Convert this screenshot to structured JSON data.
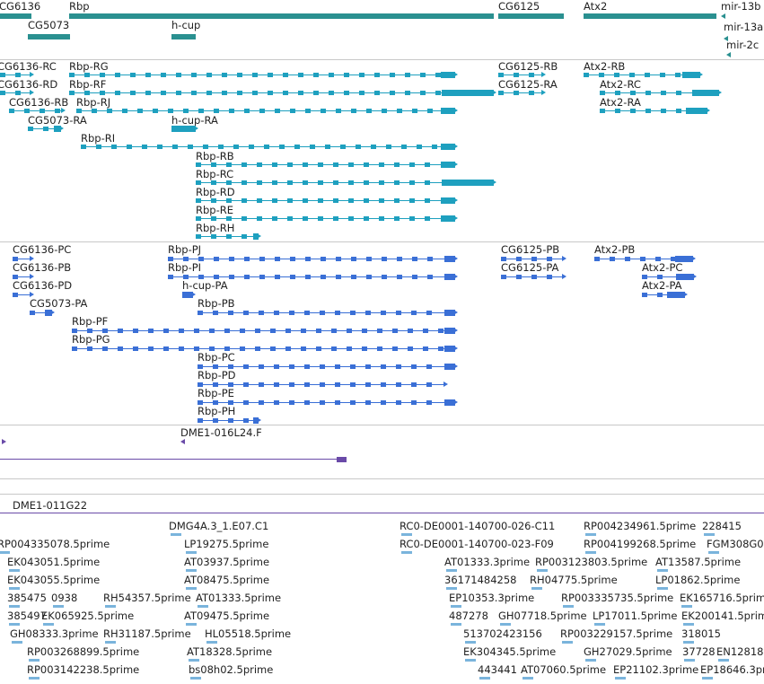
{
  "colors": {
    "gene": "#2a9090",
    "transcript": "#1ea0bf",
    "cds": "#3a6fd6",
    "clone": "#6a4aa8",
    "est": "#7ab4dc",
    "separator": "#c8c8c8"
  },
  "tracks": [
    {
      "name": "gene-track",
      "color": "gene",
      "features": [
        {
          "label": "CG6136"
        },
        {
          "label": "Rbp"
        },
        {
          "label": "CG6125"
        },
        {
          "label": "Atx2"
        },
        {
          "label": "mir-13b"
        },
        {
          "label": "CG5073"
        },
        {
          "label": "h-cup"
        },
        {
          "label": "mir-13a"
        },
        {
          "label": "mir-2c"
        }
      ]
    },
    {
      "name": "transcript-track",
      "color": "transcript",
      "features": [
        {
          "label": "CG6136-RC"
        },
        {
          "label": "Rbp-RG"
        },
        {
          "label": "CG6125-RB"
        },
        {
          "label": "Atx2-RB"
        },
        {
          "label": "CG6136-RD"
        },
        {
          "label": "Rbp-RF"
        },
        {
          "label": "CG6125-RA"
        },
        {
          "label": "Atx2-RC"
        },
        {
          "label": "CG6136-RB"
        },
        {
          "label": "Rbp-RJ"
        },
        {
          "label": "Atx2-RA"
        },
        {
          "label": "CG5073-RA"
        },
        {
          "label": "h-cup-RA"
        },
        {
          "label": "Rbp-RI"
        },
        {
          "label": "Rbp-RB"
        },
        {
          "label": "Rbp-RC"
        },
        {
          "label": "Rbp-RD"
        },
        {
          "label": "Rbp-RE"
        },
        {
          "label": "Rbp-RH"
        }
      ]
    },
    {
      "name": "cds-track",
      "color": "cds",
      "features": [
        {
          "label": "CG6136-PC"
        },
        {
          "label": "Rbp-PJ"
        },
        {
          "label": "CG6125-PB"
        },
        {
          "label": "Atx2-PB"
        },
        {
          "label": "CG6136-PB"
        },
        {
          "label": "Rbp-PI"
        },
        {
          "label": "CG6125-PA"
        },
        {
          "label": "Atx2-PC"
        },
        {
          "label": "CG6136-PD"
        },
        {
          "label": "h-cup-PA"
        },
        {
          "label": "Atx2-PA"
        },
        {
          "label": "CG5073-PA"
        },
        {
          "label": "Rbp-PB"
        },
        {
          "label": "Rbp-PF"
        },
        {
          "label": "Rbp-PG"
        },
        {
          "label": "Rbp-PC"
        },
        {
          "label": "Rbp-PD"
        },
        {
          "label": "Rbp-PE"
        },
        {
          "label": "Rbp-PH"
        }
      ]
    },
    {
      "name": "clone-track-1",
      "color": "clone",
      "features": [
        {
          "label": "DME1-016L24.F"
        }
      ]
    },
    {
      "name": "clone-track-2",
      "color": "clone",
      "features": [
        {
          "label": "DME1-011G22"
        }
      ]
    },
    {
      "name": "est-track",
      "color": "est",
      "features": [
        {
          "label": "DMG4A.3_1.E07.C1"
        },
        {
          "label": "RC0-DE0001-140700-026-C11"
        },
        {
          "label": "RP004234961.5prime"
        },
        {
          "label": "228415"
        },
        {
          "label": "RP004335078.5prime"
        },
        {
          "label": "LP19275.5prime"
        },
        {
          "label": "RC0-DE0001-140700-023-F09"
        },
        {
          "label": "RP004199268.5prime"
        },
        {
          "label": "FGM308G0"
        },
        {
          "label": "EK043051.5prime"
        },
        {
          "label": "AT03937.5prime"
        },
        {
          "label": "AT01333.3prime"
        },
        {
          "label": "RP003123803.5prime"
        },
        {
          "label": "AT13587.5prime"
        },
        {
          "label": "EK043055.5prime"
        },
        {
          "label": "AT08475.5prime"
        },
        {
          "label": "36171484258"
        },
        {
          "label": "RH04775.5prime"
        },
        {
          "label": "LP01862.5prime"
        },
        {
          "label": "385475"
        },
        {
          "label": "0938"
        },
        {
          "label": "RH54357.5prime"
        },
        {
          "label": "AT01333.5prime"
        },
        {
          "label": "EP10353.3prime"
        },
        {
          "label": "RP003335735.5prime"
        },
        {
          "label": "EK165716.5prime"
        },
        {
          "label": "385497"
        },
        {
          "label": "EK065925.5prime"
        },
        {
          "label": "AT09475.5prime"
        },
        {
          "label": "487278"
        },
        {
          "label": "GH07718.5prime"
        },
        {
          "label": "LP17011.5prime"
        },
        {
          "label": "EK200141.5prime"
        },
        {
          "label": "GH08333.3prime"
        },
        {
          "label": "RH31187.5prime"
        },
        {
          "label": "HL05518.5prime"
        },
        {
          "label": "513702423156"
        },
        {
          "label": "RP003229157.5prime"
        },
        {
          "label": "318015"
        },
        {
          "label": "RP003268899.5prime"
        },
        {
          "label": "AT18328.5prime"
        },
        {
          "label": "EK304345.5prime"
        },
        {
          "label": "GH27029.5prime"
        },
        {
          "label": "37728"
        },
        {
          "label": "EN12818"
        },
        {
          "label": "RP003142238.5prime"
        },
        {
          "label": "bs08h02.5prime"
        },
        {
          "label": "443441"
        },
        {
          "label": "AT07060.5prime"
        },
        {
          "label": "EP21102.3prime"
        },
        {
          "label": "EP18646.3prime"
        }
      ]
    }
  ]
}
